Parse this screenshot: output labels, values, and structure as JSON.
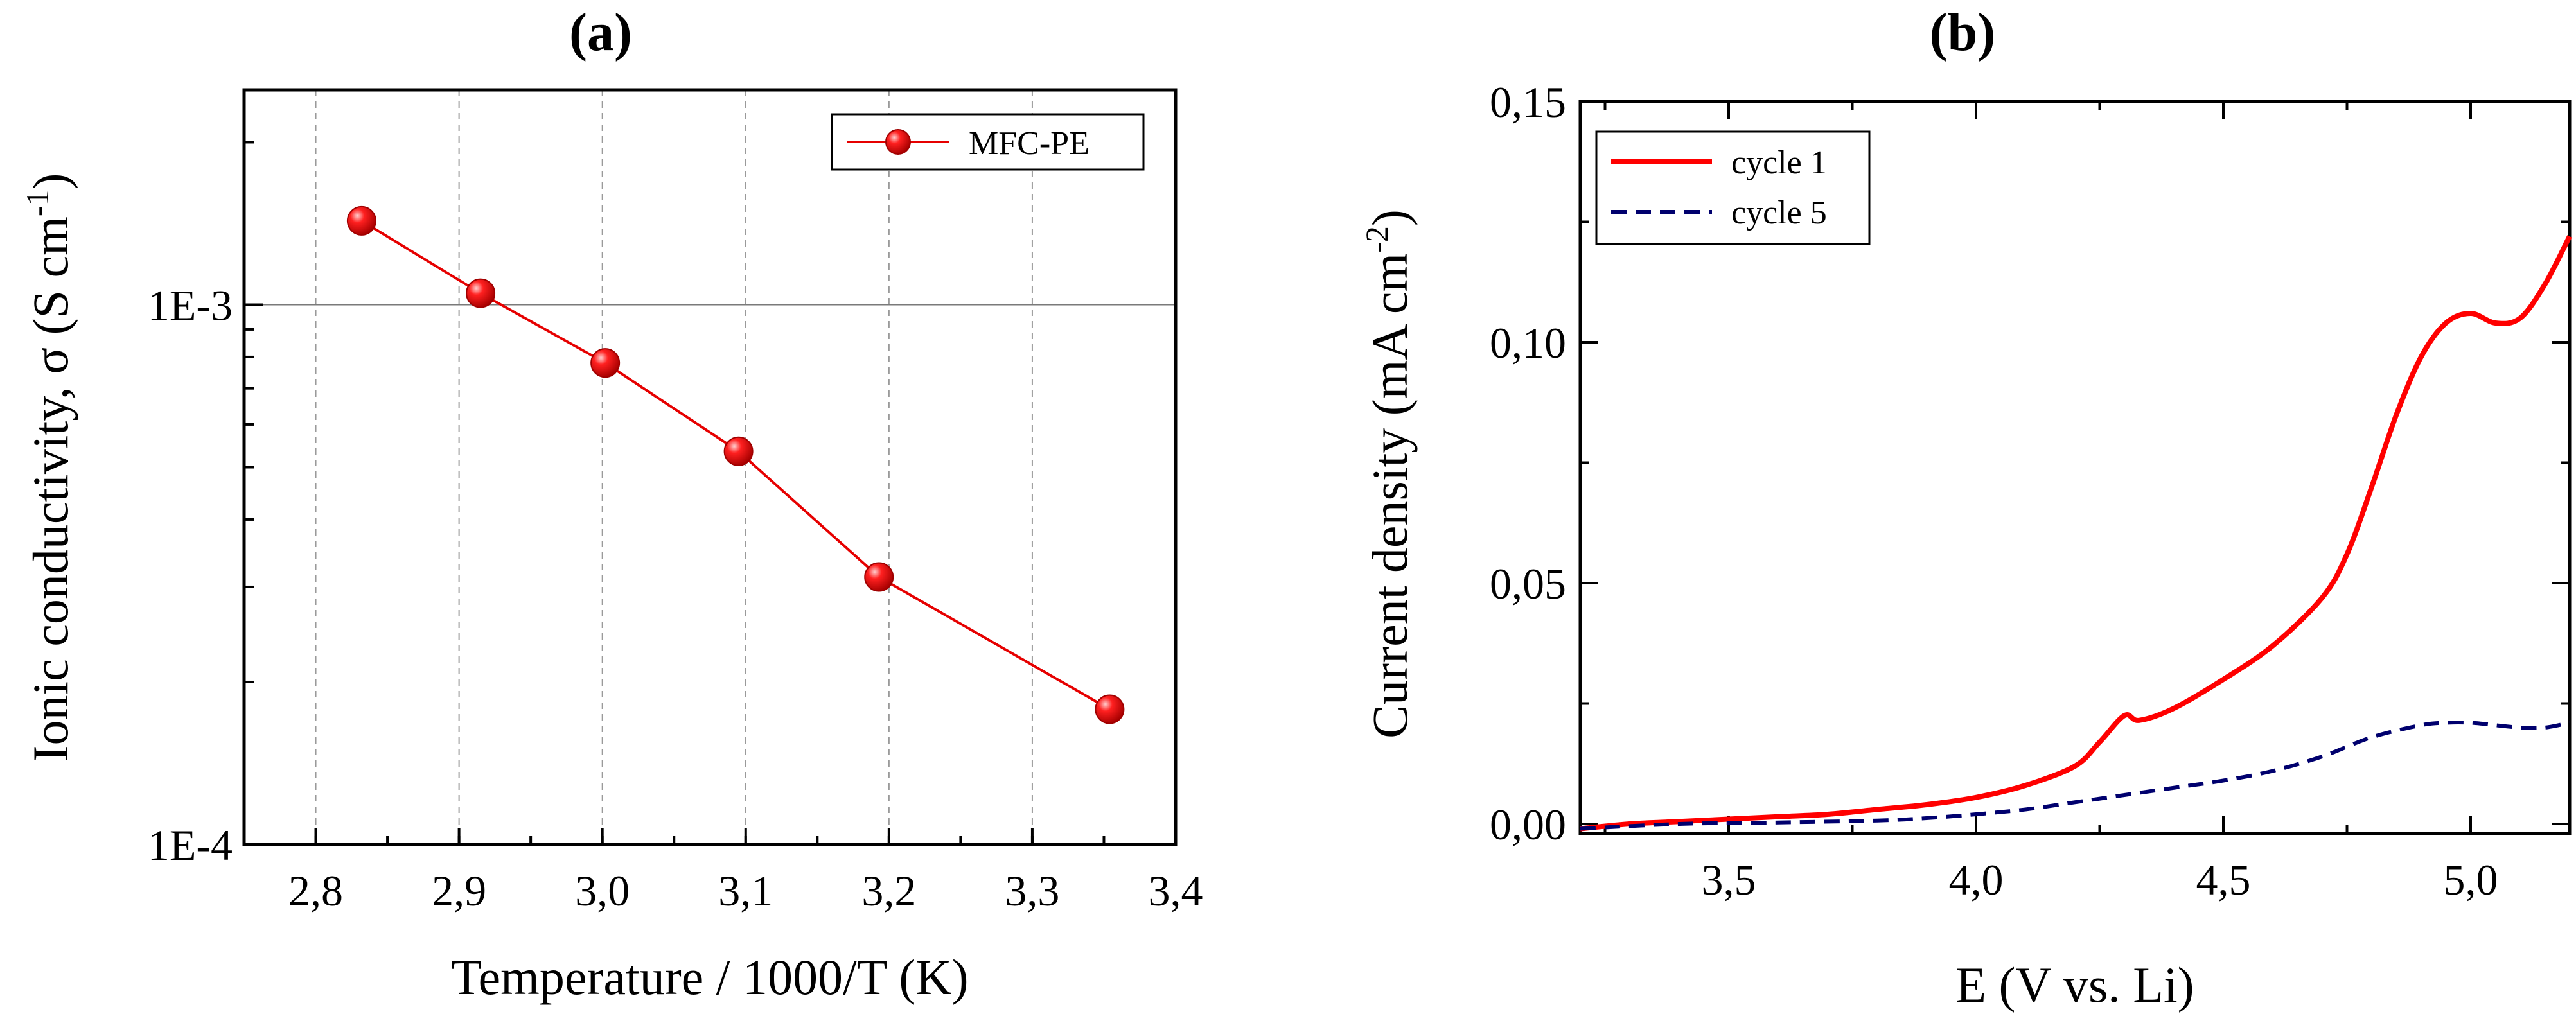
{
  "chart_data": [
    {
      "panel_label": "(a)",
      "type": "line",
      "x_label": "Temperature / 1000/T (K)",
      "y_label": "Ionic conductivity, σ (S cm",
      "y_label_sup": "-1",
      "y_label_close": ")",
      "y_scale": "log",
      "xlim": [
        2.75,
        3.4
      ],
      "ylim": [
        0.0001,
        0.0025
      ],
      "x_ticks": [
        2.8,
        2.9,
        3.0,
        3.1,
        3.2,
        3.3,
        3.4
      ],
      "x_tick_labels": [
        "2,8",
        "2,9",
        "3,0",
        "3,1",
        "3,2",
        "3,3",
        "3,4"
      ],
      "y_ticks": [
        0.0001,
        0.001
      ],
      "y_tick_labels": [
        "1E-4",
        "1E-3"
      ],
      "grid": true,
      "legend_position": "top-right",
      "series": [
        {
          "name": "MFC-PE",
          "color": "#e60000",
          "x": [
            2.832,
            2.915,
            3.002,
            3.095,
            3.193,
            3.354
          ],
          "y": [
            0.00143,
            0.00105,
            0.00078,
            0.000535,
            0.000313,
            0.000178
          ]
        }
      ]
    },
    {
      "panel_label": "(b)",
      "type": "line",
      "x_label": "E (V vs. Li)",
      "y_label": "Current density  (mA cm",
      "y_label_sup": "-2",
      "y_label_close": ")",
      "xlim": [
        3.2,
        5.2
      ],
      "ylim": [
        -0.002,
        0.15
      ],
      "x_ticks": [
        3.5,
        4.0,
        4.5,
        5.0
      ],
      "x_tick_labels": [
        "3,5",
        "4,0",
        "4,5",
        "5,0"
      ],
      "y_ticks": [
        0.0,
        0.05,
        0.1,
        0.15
      ],
      "y_tick_labels": [
        "0,00",
        "0,05",
        "0,10",
        "0,15"
      ],
      "grid": false,
      "legend_position": "top-left",
      "series": [
        {
          "name": "cycle 1",
          "color": "#ff0000",
          "style": "solid",
          "x": [
            3.2,
            3.3,
            3.4,
            3.5,
            3.6,
            3.7,
            3.8,
            3.9,
            4.0,
            4.1,
            4.2,
            4.25,
            4.3,
            4.33,
            4.4,
            4.5,
            4.6,
            4.7,
            4.75,
            4.8,
            4.85,
            4.9,
            4.95,
            5.0,
            5.05,
            5.1,
            5.15,
            5.2
          ],
          "y": [
            -0.001,
            0.0,
            0.0005,
            0.001,
            0.0015,
            0.002,
            0.003,
            0.004,
            0.0055,
            0.008,
            0.012,
            0.017,
            0.0225,
            0.0215,
            0.024,
            0.03,
            0.037,
            0.047,
            0.056,
            0.07,
            0.085,
            0.097,
            0.104,
            0.106,
            0.104,
            0.105,
            0.112,
            0.122
          ]
        },
        {
          "name": "cycle 5",
          "color": "#00006e",
          "style": "dashed",
          "x": [
            3.2,
            3.4,
            3.6,
            3.8,
            3.9,
            4.0,
            4.1,
            4.2,
            4.3,
            4.4,
            4.5,
            4.6,
            4.7,
            4.8,
            4.9,
            4.95,
            5.0,
            5.05,
            5.1,
            5.15,
            5.2
          ],
          "y": [
            -0.001,
            0.0,
            0.0003,
            0.0007,
            0.0012,
            0.002,
            0.003,
            0.0045,
            0.006,
            0.0075,
            0.009,
            0.011,
            0.014,
            0.018,
            0.0205,
            0.021,
            0.021,
            0.0205,
            0.02,
            0.02,
            0.021
          ]
        }
      ]
    }
  ]
}
